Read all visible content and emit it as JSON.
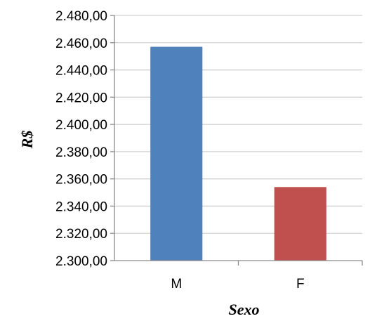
{
  "chart_data": {
    "type": "bar",
    "categories": [
      "M",
      "F"
    ],
    "values": [
      2457,
      2354
    ],
    "colors": [
      "#4f81bd",
      "#c0504d"
    ],
    "xlabel": "Sexo",
    "ylabel": "R$",
    "ylim": [
      2300,
      2480
    ],
    "ytick_step": 20,
    "yticks": [
      "2.300,00",
      "2.320,00",
      "2.340,00",
      "2.360,00",
      "2.380,00",
      "2.400,00",
      "2.420,00",
      "2.440,00",
      "2.460,00",
      "2.480,00"
    ],
    "grid": true,
    "legend": "none"
  }
}
